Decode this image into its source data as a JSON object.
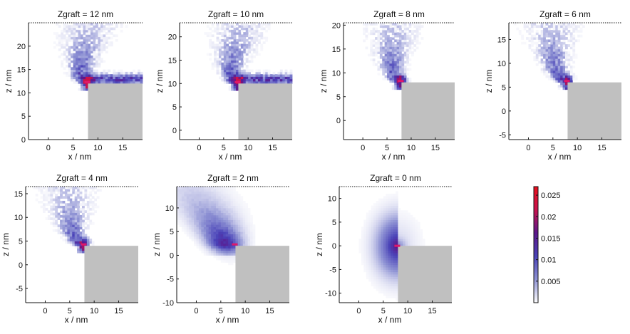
{
  "figure": {
    "colorbar": {
      "range": [
        0,
        0.027
      ],
      "ticks": [
        "0.025",
        "0.02",
        "0.015",
        "0.01",
        "0.005"
      ],
      "tick_values": [
        0.025,
        0.02,
        0.015,
        0.01,
        0.005
      ],
      "colors": [
        "#ffffff",
        "#8f93d4",
        "#4a43b8",
        "#5b178c",
        "#c9134e",
        "#e8101c"
      ]
    },
    "wall_color": "#c0c0c0",
    "graft_marker_color": "#e0186a"
  },
  "chart_data": [
    {
      "type": "heatmap",
      "title": "Zgraft = 12 nm",
      "xlabel": "x / nm",
      "ylabel": "z / nm",
      "xlim": [
        -4,
        19
      ],
      "ylim": [
        0,
        25
      ],
      "xticks": [
        0,
        5,
        10,
        15
      ],
      "xtick_labels": [
        "0",
        "5",
        "10",
        "15"
      ],
      "yticks": [
        0,
        5,
        10,
        15,
        20
      ],
      "ytick_labels": [
        "0",
        "5",
        "10",
        "15",
        "20"
      ],
      "zgraft": 12,
      "graft_point": [
        8,
        12.3
      ],
      "wall": {
        "x_from": 8,
        "z_top": 12
      },
      "density_peak": 0.022,
      "shape": "brush"
    },
    {
      "type": "heatmap",
      "title": "Zgraft = 10 nm",
      "xlabel": "x / nm",
      "ylabel": "z / nm",
      "xlim": [
        -4,
        19
      ],
      "ylim": [
        -2,
        23
      ],
      "xticks": [
        0,
        5,
        10,
        15
      ],
      "xtick_labels": [
        "0",
        "5",
        "10",
        "15"
      ],
      "yticks": [
        0,
        5,
        10,
        15,
        20
      ],
      "ytick_labels": [
        "0",
        "5",
        "10",
        "15",
        "20"
      ],
      "zgraft": 10,
      "graft_point": [
        8,
        10.3
      ],
      "wall": {
        "x_from": 8,
        "z_top": 10
      },
      "density_peak": 0.022,
      "shape": "brush"
    },
    {
      "type": "heatmap",
      "title": "Zgraft = 8 nm",
      "xlabel": "x / nm",
      "ylabel": "z / nm",
      "xlim": [
        -4,
        19
      ],
      "ylim": [
        -4,
        20.5
      ],
      "xticks": [
        0,
        5,
        10,
        15
      ],
      "xtick_labels": [
        "0",
        "5",
        "10",
        "15"
      ],
      "yticks": [
        0,
        5,
        10,
        15,
        20
      ],
      "ytick_labels": [
        "0",
        "5",
        "10",
        "15",
        "20"
      ],
      "zgraft": 8,
      "graft_point": [
        8,
        8.3
      ],
      "wall": {
        "x_from": 8,
        "z_top": 8
      },
      "density_peak": 0.02,
      "shape": "brush"
    },
    {
      "type": "heatmap",
      "title": "Zgraft = 6 nm",
      "xlabel": "x / nm",
      "ylabel": "z / nm",
      "xlim": [
        -4,
        19
      ],
      "ylim": [
        -6,
        18.5
      ],
      "xticks": [
        0,
        5,
        10,
        15
      ],
      "xtick_labels": [
        "0",
        "5",
        "10",
        "15"
      ],
      "yticks": [
        -5,
        0,
        5,
        10,
        15
      ],
      "ytick_labels": [
        "-5",
        "0",
        "5",
        "10",
        "15"
      ],
      "zgraft": 6,
      "graft_point": [
        8,
        6.3
      ],
      "wall": {
        "x_from": 8,
        "z_top": 6
      },
      "density_peak": 0.02,
      "shape": "brush"
    },
    {
      "type": "heatmap",
      "title": "Zgraft = 4 nm",
      "xlabel": "x / nm",
      "ylabel": "z / nm",
      "xlim": [
        -4,
        19
      ],
      "ylim": [
        -8,
        16.5
      ],
      "xticks": [
        0,
        5,
        10,
        15
      ],
      "xtick_labels": [
        "0",
        "5",
        "10",
        "15"
      ],
      "yticks": [
        -5,
        0,
        5,
        10,
        15
      ],
      "ytick_labels": [
        "-5",
        "0",
        "5",
        "10",
        "15"
      ],
      "zgraft": 4,
      "graft_point": [
        8,
        4.3
      ],
      "wall": {
        "x_from": 8,
        "z_top": 4
      },
      "density_peak": 0.02,
      "shape": "brush"
    },
    {
      "type": "heatmap",
      "title": "Zgraft = 2 nm",
      "xlabel": "x / nm",
      "ylabel": "z / nm",
      "xlim": [
        -4,
        19
      ],
      "ylim": [
        -10,
        14.5
      ],
      "xticks": [
        0,
        5,
        10,
        15
      ],
      "xtick_labels": [
        "0",
        "5",
        "10",
        "15"
      ],
      "yticks": [
        -10,
        -5,
        0,
        5,
        10
      ],
      "ytick_labels": [
        "-10",
        "-5",
        "0",
        "5",
        "10"
      ],
      "zgraft": 2,
      "graft_point": [
        8,
        2.3
      ],
      "wall": {
        "x_from": 8,
        "z_top": 2
      },
      "density_peak": 0.014,
      "shape": "smooth"
    },
    {
      "type": "heatmap",
      "title": "Zgraft = 0 nm",
      "xlabel": "x / nm",
      "ylabel": "z / nm",
      "xlim": [
        -4,
        19
      ],
      "ylim": [
        -12,
        12.5
      ],
      "xticks": [
        0,
        5,
        10,
        15
      ],
      "xtick_labels": [
        "0",
        "5",
        "10",
        "15"
      ],
      "yticks": [
        -10,
        -5,
        0,
        5,
        10
      ],
      "ytick_labels": [
        "-10",
        "-5",
        "0",
        "5",
        "10"
      ],
      "zgraft": 0,
      "graft_point": [
        8,
        0
      ],
      "wall": {
        "x_from": 8,
        "z_top": 0
      },
      "density_peak": 0.012,
      "shape": "symmetric"
    }
  ]
}
